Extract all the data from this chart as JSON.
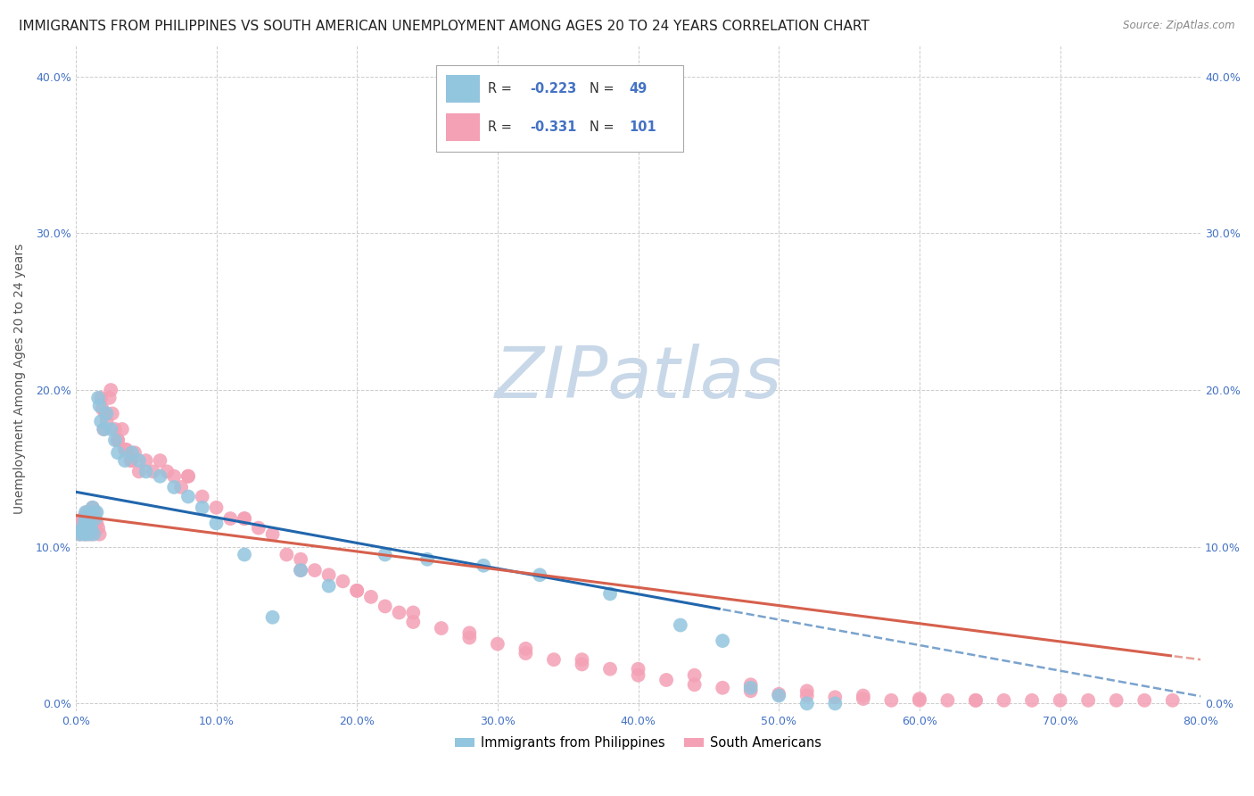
{
  "title": "IMMIGRANTS FROM PHILIPPINES VS SOUTH AMERICAN UNEMPLOYMENT AMONG AGES 20 TO 24 YEARS CORRELATION CHART",
  "source": "Source: ZipAtlas.com",
  "ylabel": "Unemployment Among Ages 20 to 24 years",
  "xlim": [
    0.0,
    0.8
  ],
  "ylim": [
    -0.005,
    0.42
  ],
  "xticks": [
    0.0,
    0.1,
    0.2,
    0.3,
    0.4,
    0.5,
    0.6,
    0.7,
    0.8
  ],
  "yticks": [
    0.0,
    0.1,
    0.2,
    0.3,
    0.4
  ],
  "xtick_labels": [
    "0.0%",
    "10.0%",
    "20.0%",
    "30.0%",
    "40.0%",
    "50.0%",
    "60.0%",
    "70.0%",
    "80.0%"
  ],
  "ytick_labels": [
    "0.0%",
    "10.0%",
    "20.0%",
    "30.0%",
    "40.0%"
  ],
  "blue_color": "#92c5de",
  "pink_color": "#f4a0b5",
  "blue_line_color": "#2166ac",
  "pink_line_color": "#d6604d",
  "R_blue": -0.223,
  "N_blue": 49,
  "R_pink": -0.331,
  "N_pink": 101,
  "watermark": "ZIPatlas",
  "watermark_color": "#c8d8e8",
  "blue_points_x": [
    0.003,
    0.004,
    0.005,
    0.006,
    0.006,
    0.007,
    0.007,
    0.008,
    0.008,
    0.009,
    0.01,
    0.01,
    0.011,
    0.012,
    0.013,
    0.014,
    0.015,
    0.016,
    0.017,
    0.018,
    0.02,
    0.022,
    0.025,
    0.028,
    0.03,
    0.035,
    0.04,
    0.045,
    0.05,
    0.06,
    0.07,
    0.08,
    0.09,
    0.1,
    0.12,
    0.14,
    0.16,
    0.18,
    0.22,
    0.25,
    0.29,
    0.33,
    0.38,
    0.43,
    0.46,
    0.48,
    0.5,
    0.52,
    0.54
  ],
  "blue_points_y": [
    0.108,
    0.11,
    0.112,
    0.115,
    0.108,
    0.118,
    0.122,
    0.115,
    0.12,
    0.108,
    0.115,
    0.12,
    0.112,
    0.125,
    0.108,
    0.118,
    0.122,
    0.195,
    0.19,
    0.18,
    0.175,
    0.185,
    0.175,
    0.168,
    0.16,
    0.155,
    0.16,
    0.155,
    0.148,
    0.145,
    0.138,
    0.132,
    0.125,
    0.115,
    0.095,
    0.055,
    0.085,
    0.075,
    0.095,
    0.092,
    0.088,
    0.082,
    0.07,
    0.05,
    0.04,
    0.01,
    0.005,
    0.0,
    0.0
  ],
  "pink_points_x": [
    0.003,
    0.004,
    0.005,
    0.005,
    0.006,
    0.007,
    0.007,
    0.008,
    0.009,
    0.01,
    0.01,
    0.011,
    0.012,
    0.013,
    0.013,
    0.014,
    0.015,
    0.016,
    0.017,
    0.018,
    0.019,
    0.02,
    0.021,
    0.022,
    0.024,
    0.026,
    0.028,
    0.03,
    0.033,
    0.036,
    0.039,
    0.042,
    0.045,
    0.05,
    0.055,
    0.06,
    0.065,
    0.07,
    0.075,
    0.08,
    0.09,
    0.1,
    0.11,
    0.12,
    0.13,
    0.14,
    0.15,
    0.16,
    0.17,
    0.18,
    0.19,
    0.2,
    0.21,
    0.22,
    0.23,
    0.24,
    0.26,
    0.28,
    0.3,
    0.32,
    0.34,
    0.36,
    0.38,
    0.4,
    0.42,
    0.44,
    0.46,
    0.48,
    0.5,
    0.52,
    0.54,
    0.56,
    0.58,
    0.6,
    0.62,
    0.64,
    0.66,
    0.68,
    0.7,
    0.72,
    0.74,
    0.76,
    0.78,
    0.025,
    0.03,
    0.035,
    0.04,
    0.08,
    0.12,
    0.16,
    0.2,
    0.24,
    0.28,
    0.32,
    0.36,
    0.4,
    0.44,
    0.48,
    0.52,
    0.56,
    0.6,
    0.64
  ],
  "pink_points_y": [
    0.108,
    0.115,
    0.112,
    0.118,
    0.115,
    0.12,
    0.108,
    0.122,
    0.112,
    0.118,
    0.115,
    0.108,
    0.125,
    0.112,
    0.118,
    0.122,
    0.115,
    0.112,
    0.108,
    0.195,
    0.188,
    0.175,
    0.185,
    0.18,
    0.195,
    0.185,
    0.175,
    0.168,
    0.175,
    0.162,
    0.155,
    0.16,
    0.148,
    0.155,
    0.148,
    0.155,
    0.148,
    0.145,
    0.138,
    0.145,
    0.132,
    0.125,
    0.118,
    0.118,
    0.112,
    0.108,
    0.095,
    0.092,
    0.085,
    0.082,
    0.078,
    0.072,
    0.068,
    0.062,
    0.058,
    0.052,
    0.048,
    0.042,
    0.038,
    0.032,
    0.028,
    0.025,
    0.022,
    0.018,
    0.015,
    0.012,
    0.01,
    0.008,
    0.006,
    0.005,
    0.004,
    0.003,
    0.002,
    0.002,
    0.002,
    0.002,
    0.002,
    0.002,
    0.002,
    0.002,
    0.002,
    0.002,
    0.002,
    0.2,
    0.168,
    0.162,
    0.155,
    0.145,
    0.118,
    0.085,
    0.072,
    0.058,
    0.045,
    0.035,
    0.028,
    0.022,
    0.018,
    0.012,
    0.008,
    0.005,
    0.003,
    0.002
  ],
  "background_color": "#ffffff",
  "grid_color": "#cccccc",
  "tick_color": "#4472c4",
  "title_fontsize": 11,
  "label_fontsize": 10,
  "tick_fontsize": 9
}
